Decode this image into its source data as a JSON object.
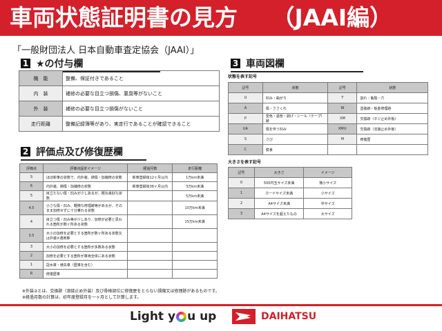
{
  "title": "車両状態証明書の見方　　（JAAI編）",
  "subtitle": "「一般財団法人 日本自動車査定協会（JAAI）」",
  "section1": {
    "num": "1",
    "title": "★の付与欄",
    "rows": [
      [
        "機　能",
        "整備、保証付きであること"
      ],
      [
        "内　装",
        "補修の必要な目立つ損傷、悪臭等がないこと"
      ],
      [
        "外　装",
        "補修の必要な目立つ損傷がないこと"
      ],
      [
        "走行距離",
        "整備記録簿等があり、実走行であることが確認できること"
      ]
    ]
  },
  "section2": {
    "num": "2",
    "title": "評価点及び修復歴欄",
    "headers": [
      "評価点",
      "評価点設定イメージ",
      "経過月数",
      "走行距離"
    ],
    "rows": [
      [
        "S",
        "ほぼ新車の状態で、内外装、損傷・加補修の状態",
        "新車登録後12ヶ月以内",
        "1万km未満"
      ],
      [
        "6",
        "内外装、損傷・加補修の状態",
        "新車登録後36ヶ月以内",
        "3万km未満"
      ],
      [
        "5",
        "目立たない傷・凹みが少しあるが、概ね良好な状態",
        "",
        "5万km未満"
      ],
      [
        "4.5",
        "小さな傷・凹み、軽微な修理跡等があるが、そのまま加修せずに十分乗れる状態",
        "",
        "10万km未満"
      ],
      [
        "4",
        "目立つ傷・凹み等が少しあり、加修が必要と思われる箇所が数ヶ所ある状態",
        "",
        "15万km未満"
      ],
      [
        "3.5",
        "大小の加修を必要とする箇所が数ヶ所ある状態又は外装②適用車",
        "",
        ""
      ],
      [
        "3",
        "大小の加修を必要とする箇所が多数ある状態",
        "",
        ""
      ],
      [
        "2",
        "加修を必要とする箇所が車両全体にある状態",
        "",
        ""
      ],
      [
        "1",
        "冠水車・焼失車（歴車を含む）",
        "",
        ""
      ],
      [
        "R",
        "修復歴車",
        "",
        ""
      ]
    ],
    "notes": [
      "※外装②とは、交換跡（溶接止め外装）及び骨格部位に修復歴をとらない損傷又は修理跡があるものです。",
      "※経過月数の計算は、初年度登録月を一ヶ月として計算します。"
    ]
  },
  "section3": {
    "num": "3",
    "title": "車両図欄",
    "state_caption": "状態を表す記号",
    "state_headers": [
      "記号",
      "状態",
      "記号",
      "状態"
    ],
    "state_rows": [
      [
        "U",
        "凹み・曲がり",
        "T",
        "割れ・亀裂・穴"
      ],
      [
        "A",
        "傷・ささくれ",
        "W",
        "塗装跡・板金修理跡"
      ],
      [
        "P",
        "変色・退色・剥げ・シール（テープ）跡",
        "XM",
        "交換跡（ネジ止め外板）"
      ],
      [
        "UA",
        "傷を伴う凹み",
        "XM②",
        "交換跡（溶接止め外板）"
      ],
      [
        "S",
        "さび",
        "M",
        "修復歴"
      ],
      [
        "C",
        "腐食",
        "",
        ""
      ]
    ],
    "size_caption": "大きさを表す記号",
    "size_headers": [
      "記号",
      "大きさ",
      "イメージ"
    ],
    "size_rows": [
      [
        "0",
        "500円玉サイズ未満",
        "微小サイズ"
      ],
      [
        "1",
        "カードサイズ未満",
        "小サイズ"
      ],
      [
        "2",
        "A4サイズ未満",
        "中サイズ"
      ],
      [
        "3",
        "A4サイズを超えたもの",
        "大サイズ"
      ]
    ]
  },
  "footer": {
    "slogan_a": "Light y",
    "slogan_b": "u up",
    "brand": "DAIHATSU"
  },
  "colors": {
    "brand_red": "#d3202a"
  }
}
